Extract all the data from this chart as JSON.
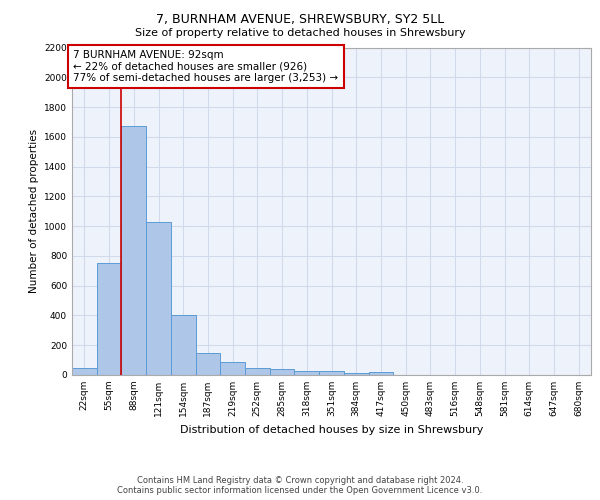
{
  "title1": "7, BURNHAM AVENUE, SHREWSBURY, SY2 5LL",
  "title2": "Size of property relative to detached houses in Shrewsbury",
  "xlabel": "Distribution of detached houses by size in Shrewsbury",
  "ylabel": "Number of detached properties",
  "categories": [
    "22sqm",
    "55sqm",
    "88sqm",
    "121sqm",
    "154sqm",
    "187sqm",
    "219sqm",
    "252sqm",
    "285sqm",
    "318sqm",
    "351sqm",
    "384sqm",
    "417sqm",
    "450sqm",
    "483sqm",
    "516sqm",
    "548sqm",
    "581sqm",
    "614sqm",
    "647sqm",
    "680sqm"
  ],
  "values": [
    50,
    750,
    1670,
    1030,
    405,
    150,
    85,
    50,
    40,
    30,
    25,
    15,
    20,
    0,
    0,
    0,
    0,
    0,
    0,
    0,
    0
  ],
  "bar_color": "#aec6e8",
  "bar_edge_color": "#5b9bd5",
  "vline_x": 1.5,
  "vline_color": "#cc0000",
  "ylim": [
    0,
    2200
  ],
  "yticks": [
    0,
    200,
    400,
    600,
    800,
    1000,
    1200,
    1400,
    1600,
    1800,
    2000,
    2200
  ],
  "annotation_text": "7 BURNHAM AVENUE: 92sqm\n← 22% of detached houses are smaller (926)\n77% of semi-detached houses are larger (3,253) →",
  "annotation_box_color": "#ffffff",
  "annotation_box_edge": "#cc0000",
  "background_color": "#eef3fb",
  "grid_color": "#d0daea",
  "footer": "Contains HM Land Registry data © Crown copyright and database right 2024.\nContains public sector information licensed under the Open Government Licence v3.0."
}
